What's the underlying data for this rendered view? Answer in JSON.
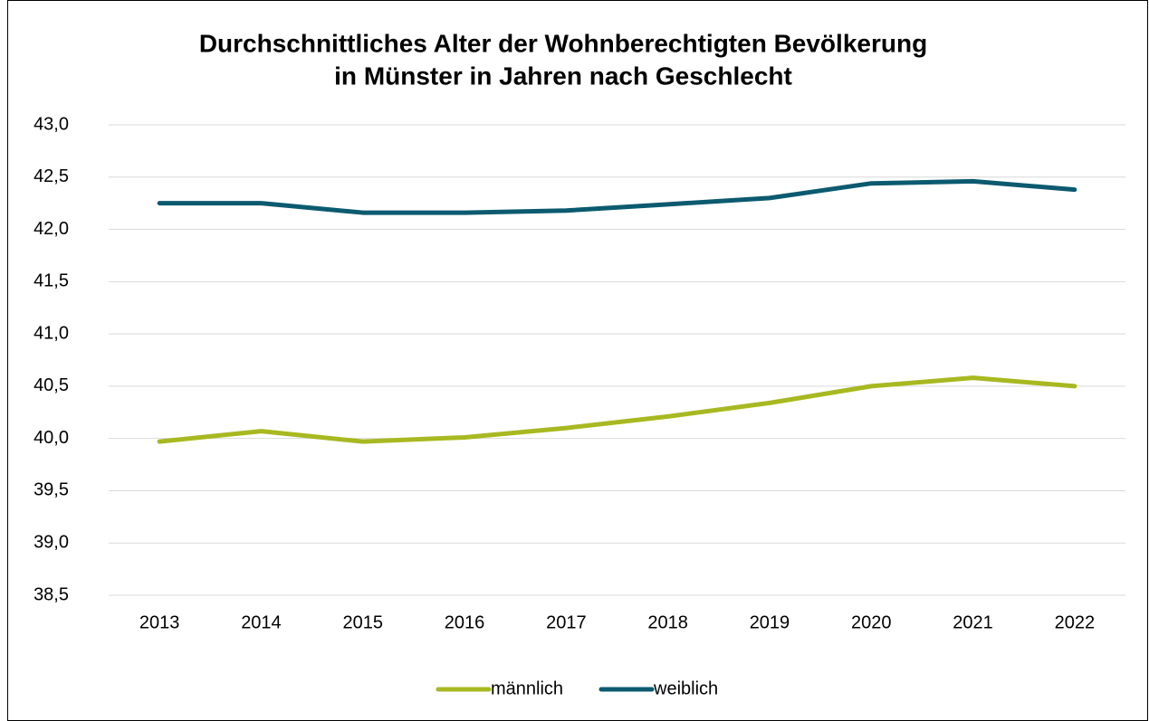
{
  "chart_data": {
    "type": "line",
    "title": "Durchschnittliches Alter der Wohnberechtigten Bevölkerung",
    "subtitle": "in Münster in Jahren nach Geschlecht",
    "categories": [
      "2013",
      "2014",
      "2015",
      "2016",
      "2017",
      "2018",
      "2019",
      "2020",
      "2021",
      "2022"
    ],
    "series": [
      {
        "name": "männlich",
        "color": "#a8b820",
        "values": [
          39.97,
          40.07,
          39.97,
          40.01,
          40.1,
          40.21,
          40.34,
          40.5,
          40.58,
          40.5
        ]
      },
      {
        "name": "weiblich",
        "color": "#0b5a70",
        "values": [
          42.25,
          42.25,
          42.16,
          42.16,
          42.18,
          42.24,
          42.3,
          42.44,
          42.46,
          42.38
        ]
      }
    ],
    "ylim": [
      38.5,
      43.0
    ],
    "yticks": [
      {
        "value": 38.5,
        "label": "38,5"
      },
      {
        "value": 39.0,
        "label": "39,0"
      },
      {
        "value": 39.5,
        "label": "39,5"
      },
      {
        "value": 40.0,
        "label": "40,0"
      },
      {
        "value": 40.5,
        "label": "40,5"
      },
      {
        "value": 41.0,
        "label": "41,0"
      },
      {
        "value": 41.5,
        "label": "41,5"
      },
      {
        "value": 42.0,
        "label": "42,0"
      },
      {
        "value": 42.5,
        "label": "42,5"
      },
      {
        "value": 43.0,
        "label": "43,0"
      }
    ],
    "grid": true,
    "legend": "bottom"
  }
}
